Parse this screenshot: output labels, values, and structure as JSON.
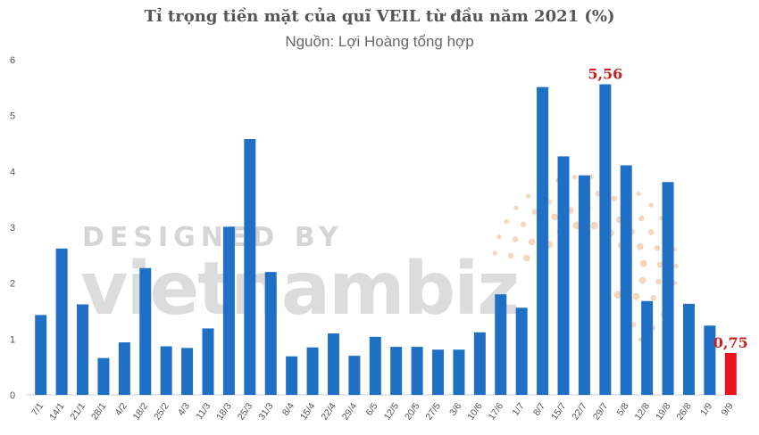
{
  "chart_data": {
    "type": "bar",
    "title": "Tỉ trọng tiền mặt của quĩ VEIL từ đầu năm 2021 (%)",
    "subtitle": "Nguồn: Lợi Hoàng tổng hợp",
    "categories": [
      "7/1",
      "14/1",
      "21/1",
      "28/1",
      "4/2",
      "18/2",
      "25/2",
      "4/3",
      "11/3",
      "18/3",
      "25/3",
      "31/3",
      "8/4",
      "15/4",
      "22/4",
      "29/4",
      "6/5",
      "12/5",
      "20/5",
      "27/5",
      "3/6",
      "10/6",
      "17/6",
      "1/7",
      "8/7",
      "15/7",
      "22/7",
      "29/7",
      "5/8",
      "12/8",
      "19/8",
      "26/8",
      "1/9",
      "9/9"
    ],
    "values": [
      1.43,
      2.62,
      1.62,
      0.66,
      0.94,
      2.27,
      0.87,
      0.84,
      1.19,
      3.01,
      4.58,
      2.2,
      0.69,
      0.85,
      1.1,
      0.7,
      1.04,
      0.86,
      0.86,
      0.81,
      0.81,
      1.12,
      1.8,
      1.56,
      5.51,
      4.27,
      3.93,
      5.56,
      4.11,
      1.68,
      3.81,
      1.63,
      1.24,
      0.75
    ],
    "ylim": [
      0,
      6
    ],
    "yticks": [
      "0",
      "1",
      "2",
      "3",
      "4",
      "5",
      "6"
    ],
    "grid": false,
    "colors": {
      "bar": "#1f6fc5",
      "highlight": "#e8151b",
      "callout": "#cc1f1f"
    },
    "highlight_index": 33,
    "annotations": [
      {
        "label": "5,56",
        "category": "29/7"
      },
      {
        "label": "0,75",
        "category": "9/9"
      }
    ]
  },
  "watermark": {
    "line1": "DESIGNED BY",
    "line2": "vietnambiz"
  }
}
